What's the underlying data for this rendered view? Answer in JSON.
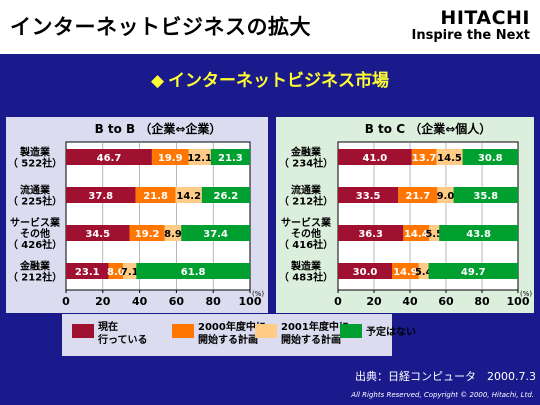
{
  "header": {
    "title": "インターネットビジネスの拡大",
    "brand": "HITACHI",
    "tagline": "Inspire the Next"
  },
  "section_title": "インターネットビジネス市場",
  "source": "出典：日経コンピュータ　2000.7.3",
  "copyright": "All Rights Reserved, Copyright © 2000, Hitachi, Ltd.",
  "colors": {
    "current": "#a01030",
    "plan2000": "#ff7700",
    "plan2001": "#ffcc88",
    "none": "#00a030"
  },
  "legend": [
    {
      "key": "current",
      "label_lines": [
        "現在",
        "行っている"
      ]
    },
    {
      "key": "plan2000",
      "label_lines": [
        "2000年度中に",
        "開始する計画"
      ]
    },
    {
      "key": "plan2001",
      "label_lines": [
        "2001年度中に",
        "開始する計画"
      ]
    },
    {
      "key": "none",
      "label_lines": [
        "予定はない"
      ]
    }
  ],
  "chart_data": [
    {
      "type": "bar",
      "stacked": true,
      "orientation": "horizontal",
      "title": "B to B （企業⇔企業）",
      "xlim": [
        0,
        100
      ],
      "xticks": [
        0,
        20,
        40,
        60,
        80,
        100
      ],
      "unit": "(%)",
      "categories": [
        {
          "lines": [
            "製造業",
            "（ 522社）"
          ]
        },
        {
          "lines": [
            "流通業",
            "（ 225社）"
          ]
        },
        {
          "lines": [
            "サービス業",
            "その他",
            "（ 426社）"
          ]
        },
        {
          "lines": [
            "金融業",
            "（ 212社）"
          ]
        }
      ],
      "series": [
        {
          "key": "current",
          "values": [
            46.7,
            37.8,
            34.5,
            23.1
          ]
        },
        {
          "key": "plan2000",
          "values": [
            19.9,
            21.8,
            19.2,
            8.0
          ]
        },
        {
          "key": "plan2001",
          "values": [
            12.1,
            14.2,
            8.9,
            7.1
          ]
        },
        {
          "key": "none",
          "values": [
            21.3,
            26.2,
            37.4,
            61.8
          ]
        }
      ]
    },
    {
      "type": "bar",
      "stacked": true,
      "orientation": "horizontal",
      "title": "B to C （企業⇔個人）",
      "xlim": [
        0,
        100
      ],
      "xticks": [
        0,
        20,
        40,
        60,
        80,
        100
      ],
      "unit": "(%)",
      "categories": [
        {
          "lines": [
            "金融業",
            "（ 234社）"
          ]
        },
        {
          "lines": [
            "流通業",
            "（ 212社）"
          ]
        },
        {
          "lines": [
            "サービス業",
            "その他",
            "（ 416社）"
          ]
        },
        {
          "lines": [
            "製造業",
            "（ 483社）"
          ]
        }
      ],
      "series": [
        {
          "key": "current",
          "values": [
            41.0,
            33.5,
            36.3,
            30.0
          ]
        },
        {
          "key": "plan2000",
          "values": [
            13.7,
            21.7,
            14.4,
            14.9
          ]
        },
        {
          "key": "plan2001",
          "values": [
            14.5,
            9.0,
            5.5,
            5.4
          ]
        },
        {
          "key": "none",
          "values": [
            30.8,
            35.8,
            43.8,
            49.7
          ]
        }
      ]
    }
  ]
}
